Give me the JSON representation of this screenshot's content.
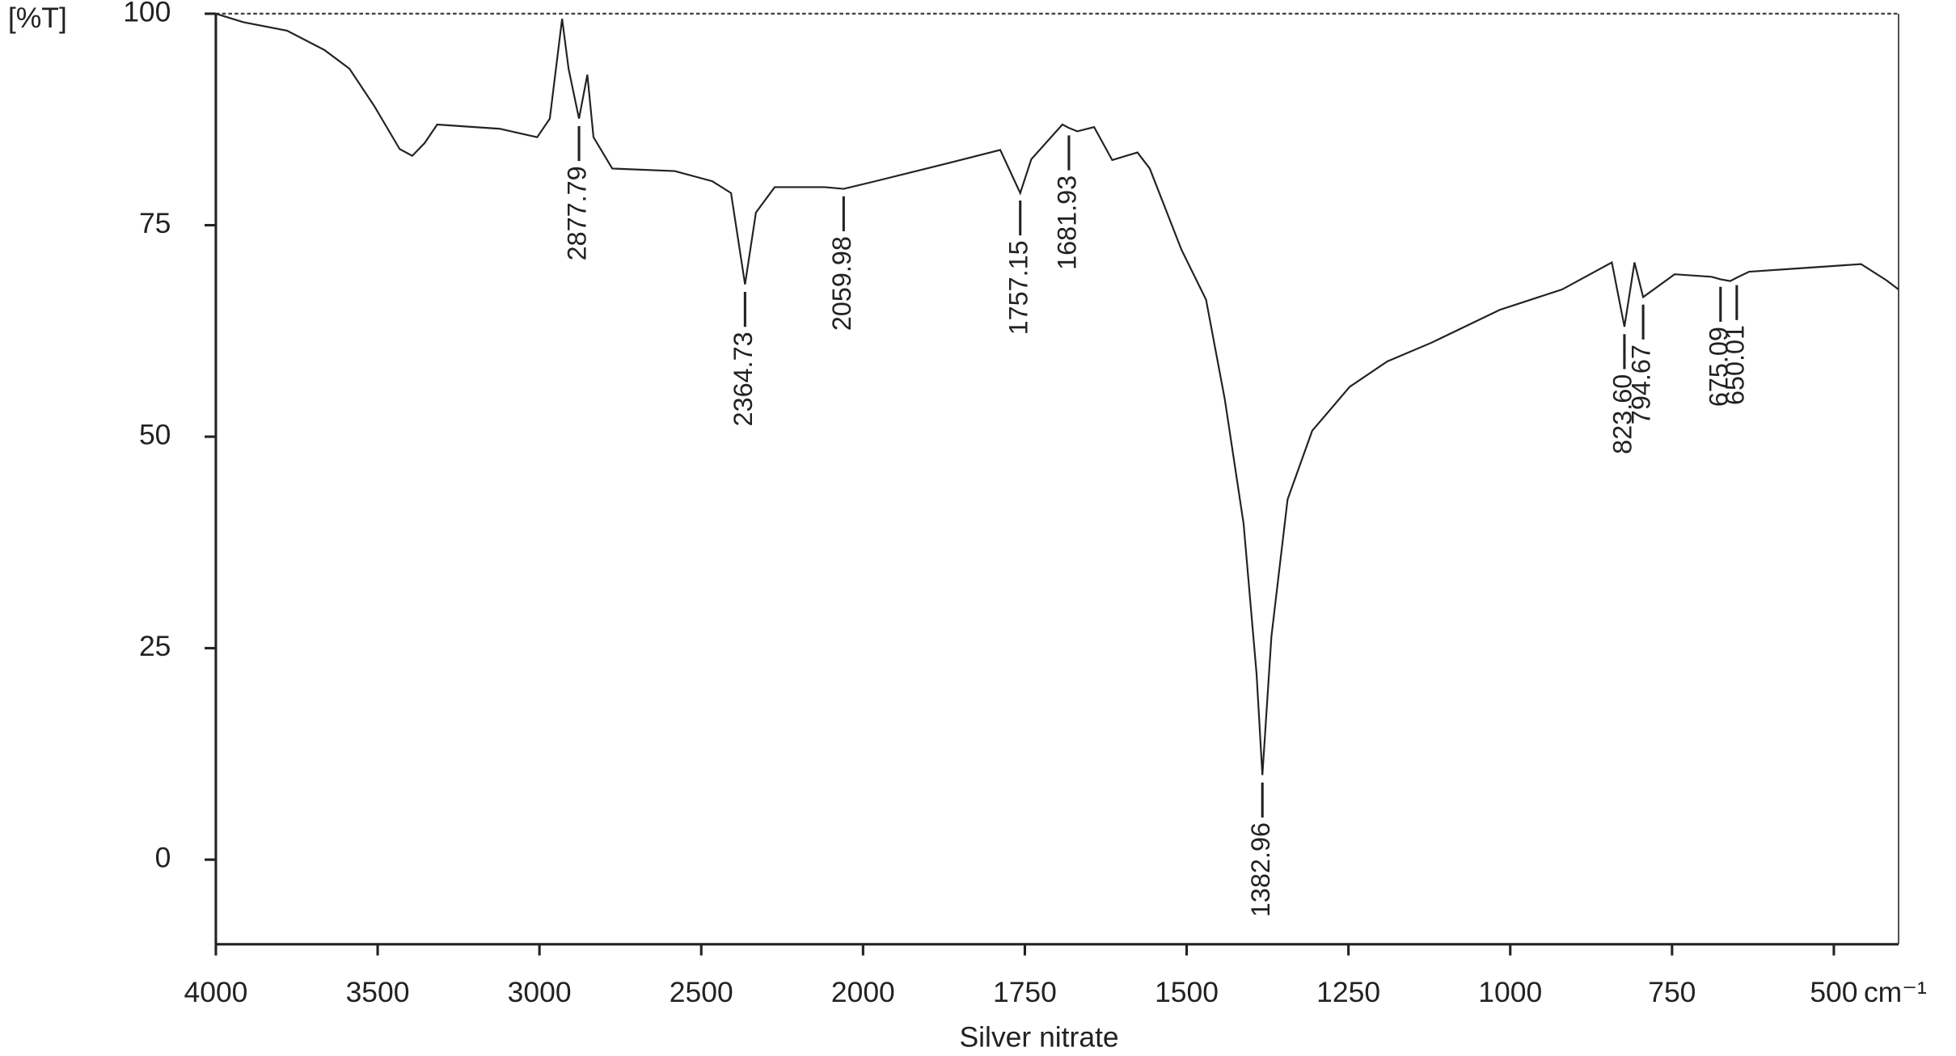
{
  "chart_data": {
    "type": "line",
    "y_label": "[%T]",
    "x_label": "Silver nitrate",
    "x_unit": "cm⁻¹",
    "xlim": [
      4000,
      400
    ],
    "xticks": [
      4000,
      3500,
      3000,
      2500,
      2000,
      1750,
      1500,
      1250,
      1000,
      750,
      500
    ],
    "xscale": "tick-spaced",
    "ylim": [
      -10,
      100
    ],
    "yticks": [
      0,
      25,
      50,
      75,
      100
    ],
    "color": "#222222",
    "x": [
      4000,
      3915,
      3780,
      3664,
      3587,
      3509,
      3432,
      3393,
      3355,
      3316,
      3239,
      3123,
      3007,
      2968,
      2930,
      2910,
      2877.79,
      2852,
      2833,
      2775,
      2582,
      2466,
      2408,
      2364.73,
      2331,
      2273,
      2119,
      2059.98,
      1981,
      1865,
      1788,
      1757.15,
      1740,
      1692,
      1681.93,
      1669,
      1643,
      1615,
      1576,
      1557,
      1508,
      1470,
      1441,
      1412,
      1392,
      1382.96,
      1369,
      1344,
      1306,
      1248,
      1190,
      1122,
      1016,
      920,
      843,
      823.6,
      808,
      794.67,
      746,
      689,
      675.09,
      660,
      650.01,
      631,
      554,
      458,
      419,
      400
    ],
    "values": [
      100,
      99,
      98,
      95.7,
      93.5,
      89,
      84,
      83.2,
      84.7,
      86.9,
      86.7,
      86.4,
      85.4,
      87.6,
      99.4,
      93.5,
      87.6,
      92.8,
      85.4,
      81.7,
      81.4,
      80.2,
      78.8,
      68,
      76.5,
      79.5,
      79.5,
      79.3,
      80.2,
      82.4,
      83.9,
      78.8,
      82.8,
      86.9,
      86.5,
      86.1,
      86.6,
      82.7,
      83.6,
      81.7,
      72.1,
      66.2,
      54.4,
      39.7,
      22,
      10,
      26.4,
      42.6,
      50.7,
      55.9,
      58.9,
      61.1,
      65,
      67.4,
      70.6,
      63,
      70.6,
      66.5,
      69.2,
      68.9,
      68.6,
      68.4,
      68.8,
      69.5,
      69.9,
      70.4,
      68.5,
      67.4
    ],
    "peaks": {
      "x": [
        2877.79,
        2364.73,
        2059.98,
        1757.15,
        1681.93,
        1382.96,
        823.6,
        794.67,
        675.09,
        650.01
      ],
      "labels": [
        "2877.79",
        "2364.73",
        "2059.98",
        "1757.15",
        "1681.93",
        "1382.96",
        "823.60",
        "794.67",
        "675.09",
        "650.01"
      ],
      "y": [
        87.6,
        68,
        79.3,
        78.8,
        86.5,
        10,
        63,
        66.5,
        68.6,
        68.8
      ]
    }
  }
}
